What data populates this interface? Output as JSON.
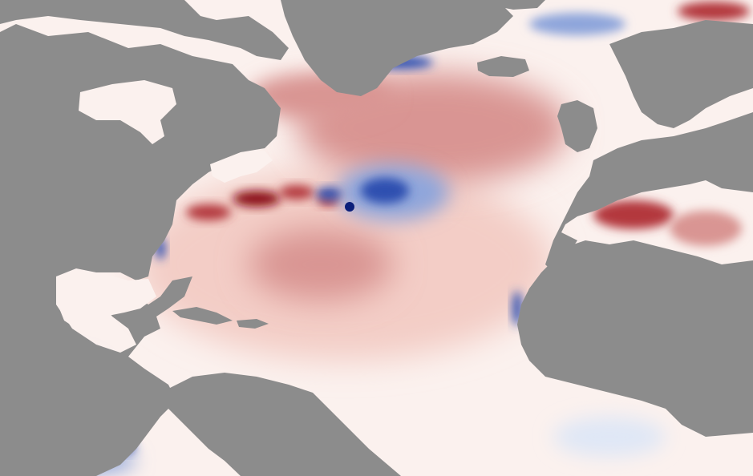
{
  "map": {
    "kind": "sea-surface-temperature-anomaly",
    "projection_style": "curved-bottom-edge",
    "colors": {
      "land": "#8c8c8c",
      "ocean_neutral": "#fbf1ee",
      "warm_light": "#f3cdc6",
      "warm_mid": "#d99593",
      "warm_strong": "#b3383d",
      "warm_extreme": "#8b0f14",
      "cool_light": "#dfe7f6",
      "cool_mid": "#8fa6db",
      "cool_strong": "#2e4fb0",
      "cool_extreme": "#0b1f7a",
      "frame_background": "#ffffff"
    },
    "icons": {
      "land": "gray-landmass",
      "ocean": "color-shaded-anomaly-field"
    }
  }
}
